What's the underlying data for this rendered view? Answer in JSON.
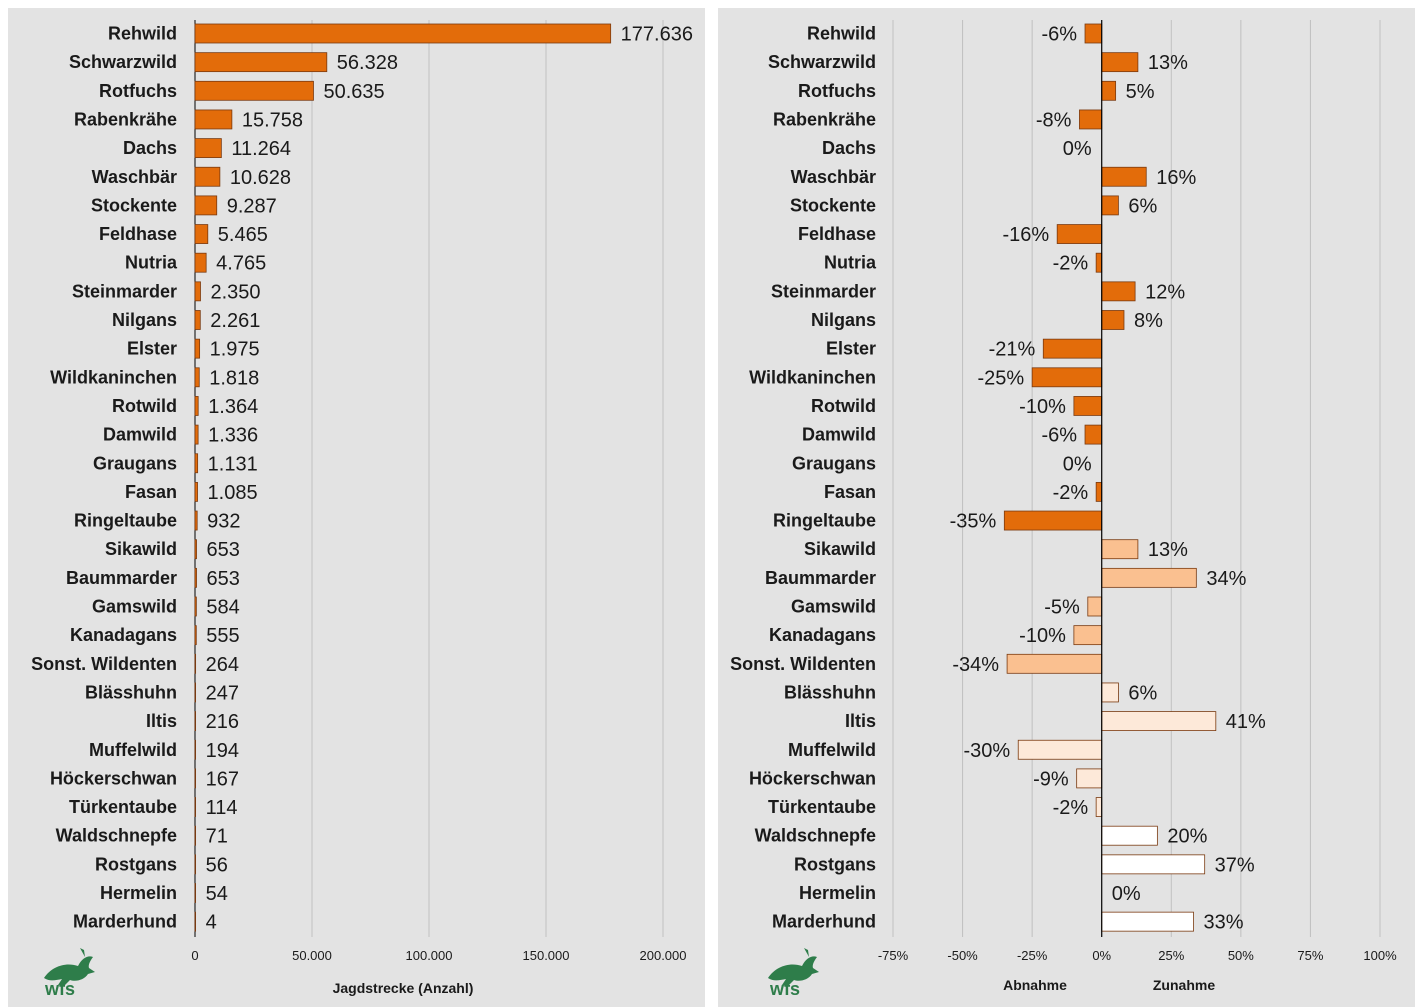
{
  "chart_data": [
    {
      "type": "bar",
      "orientation": "horizontal",
      "categories": [
        "Rehwild",
        "Schwarzwild",
        "Rotfuchs",
        "Rabenkrähe",
        "Dachs",
        "Waschbär",
        "Stockente",
        "Feldhase",
        "Nutria",
        "Steinmarder",
        "Nilgans",
        "Elster",
        "Wildkaninchen",
        "Rotwild",
        "Damwild",
        "Graugans",
        "Fasan",
        "Ringeltaube",
        "Sikawild",
        "Baummarder",
        "Gamswild",
        "Kanadagans",
        "Sonst. Wildenten",
        "Blässhuhn",
        "Iltis",
        "Muffelwild",
        "Höckerschwan",
        "Türkentaube",
        "Waldschnepfe",
        "Rostgans",
        "Hermelin",
        "Marderhund"
      ],
      "values": [
        177636,
        56328,
        50635,
        15758,
        11264,
        10628,
        9287,
        5465,
        4765,
        2350,
        2261,
        1975,
        1818,
        1364,
        1336,
        1131,
        1085,
        932,
        653,
        653,
        584,
        555,
        264,
        247,
        216,
        194,
        167,
        114,
        71,
        56,
        54,
        4
      ],
      "value_labels": [
        "177.636",
        "56.328",
        "50.635",
        "15.758",
        "11.264",
        "10.628",
        "9.287",
        "5.465",
        "4.765",
        "2.350",
        "2.261",
        "1.975",
        "1.818",
        "1.364",
        "1.336",
        "1.131",
        "1.085",
        "932",
        "653",
        "653",
        "584",
        "555",
        "264",
        "247",
        "216",
        "194",
        "167",
        "114",
        "71",
        "56",
        "54",
        "4"
      ],
      "xlim": [
        0,
        200000
      ],
      "xticks": [
        0,
        50000,
        100000,
        150000,
        200000
      ],
      "xtick_labels": [
        "0",
        "50.000",
        "100.000",
        "150.000",
        "200.000"
      ],
      "xlabel": "Jagdstrecke (Anzahl)",
      "grid": true,
      "bar_color": "#e36c0a"
    },
    {
      "type": "bar",
      "orientation": "horizontal",
      "categories": [
        "Rehwild",
        "Schwarzwild",
        "Rotfuchs",
        "Rabenkrähe",
        "Dachs",
        "Waschbär",
        "Stockente",
        "Feldhase",
        "Nutria",
        "Steinmarder",
        "Nilgans",
        "Elster",
        "Wildkaninchen",
        "Rotwild",
        "Damwild",
        "Graugans",
        "Fasan",
        "Ringeltaube",
        "Sikawild",
        "Baummarder",
        "Gamswild",
        "Kanadagans",
        "Sonst. Wildenten",
        "Blässhuhn",
        "Iltis",
        "Muffelwild",
        "Höckerschwan",
        "Türkentaube",
        "Waldschnepfe",
        "Rostgans",
        "Hermelin",
        "Marderhund"
      ],
      "values": [
        -6,
        13,
        5,
        -8,
        0,
        16,
        6,
        -16,
        -2,
        12,
        8,
        -21,
        -25,
        -10,
        -6,
        0,
        -2,
        -35,
        13,
        34,
        -5,
        -10,
        -34,
        6,
        41,
        -30,
        -9,
        -2,
        20,
        37,
        0,
        33
      ],
      "value_labels": [
        "-6%",
        "13%",
        "5%",
        "-8%",
        "0%",
        "16%",
        "6%",
        "-16%",
        "-2%",
        "12%",
        "8%",
        "-21%",
        "-25%",
        "-10%",
        "-6%",
        "0%",
        "-2%",
        "-35%",
        "13%",
        "34%",
        "-5%",
        "-10%",
        "-34%",
        "6%",
        "41%",
        "-30%",
        "-9%",
        "-2%",
        "20%",
        "37%",
        "0%",
        "33%"
      ],
      "color_groups": [
        0,
        0,
        0,
        0,
        0,
        0,
        0,
        0,
        0,
        0,
        0,
        0,
        0,
        0,
        0,
        0,
        0,
        0,
        1,
        1,
        1,
        1,
        1,
        2,
        2,
        2,
        2,
        2,
        3,
        3,
        3,
        3
      ],
      "group_colors": [
        "#e36c0a",
        "#fac090",
        "#fde9d9",
        "#ffffff"
      ],
      "xlim": [
        -75,
        100
      ],
      "xticks": [
        -75,
        -50,
        -25,
        0,
        25,
        50,
        75,
        100
      ],
      "xtick_labels": [
        "-75%",
        "-50%",
        "-25%",
        "0%",
        "25%",
        "50%",
        "75%",
        "100%"
      ],
      "xlabel_left": "Abnahme",
      "xlabel_right": "Zunahme",
      "grid": true
    }
  ],
  "logo": {
    "text": "wfs",
    "color": "#2e7d4a"
  },
  "colors": {
    "panel_bg": "#e3e3e3",
    "gridline": "#c0c0c0",
    "bar_outline": "#7a3a10"
  }
}
